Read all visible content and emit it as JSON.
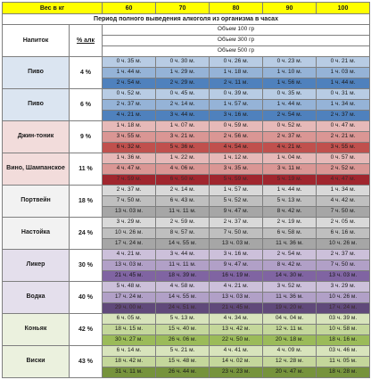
{
  "header": {
    "weight_label": "Вес в кг",
    "weights": [
      "60",
      "70",
      "80",
      "90",
      "100"
    ],
    "subtitle": "Период полного выведения алкоголя из организма в часах",
    "drink_label": "Напиток",
    "pct_label": "% алк",
    "volumes": [
      "Объем 100 гр",
      "Объем 300 гр",
      "Объем 500 гр"
    ]
  },
  "colors": {
    "weight_header": "#ffff00",
    "Пиво": [
      "#dbe5f1",
      "#b8cce4",
      "#95b3d7",
      "#4f81bd"
    ],
    "Джин-тоник": [
      "#f2dcdb",
      "#e6b9b8",
      "#da9694",
      "#c0504d"
    ],
    "Вино, Шампанское": [
      "#f2dcdb",
      "#e6b9b8",
      "#da9694",
      "#a0262e"
    ],
    "Портвейн": [
      "#f2f2f2",
      "#d9d9d9",
      "#bfbfbf",
      "#a6a6a6"
    ],
    "Настойка": [
      "#f2f2f2",
      "#d9d9d9",
      "#bfbfbf",
      "#a6a6a6"
    ],
    "Ликер": [
      "#e4dfec",
      "#ccc0da",
      "#b1a0c7",
      "#8064a2"
    ],
    "Водка": [
      "#e4dfec",
      "#ccc0da",
      "#b1a0c7",
      "#60497a"
    ],
    "Коньяк": [
      "#ebf1de",
      "#d8e4bc",
      "#c4d79b",
      "#9bbb59"
    ],
    "Виски": [
      "#ebf1de",
      "#d8e4bc",
      "#c4d79b",
      "#76933c"
    ]
  },
  "rows": [
    {
      "drink": "Пиво",
      "pct": "4 %",
      "values": [
        [
          "0 ч. 35 м.",
          "0 ч. 30 м.",
          "0 ч. 26 м.",
          "0 ч. 23 м.",
          "0 ч. 21 м."
        ],
        [
          "1 ч. 44 м.",
          "1 ч. 29 м.",
          "1 ч. 18 м.",
          "1 ч. 10 м.",
          "1 ч. 03 м."
        ],
        [
          "2 ч. 54 м.",
          "2 ч. 29 м.",
          "2 ч. 11 м.",
          "1 ч. 56 м.",
          "1 ч. 44 м."
        ]
      ]
    },
    {
      "drink": "Пиво",
      "pct": "6 %",
      "values": [
        [
          "0 ч. 52 м.",
          "0 ч. 45 м.",
          "0 ч. 39 м.",
          "0 ч. 35 м.",
          "0 ч. 31 м."
        ],
        [
          "2 ч. 37 м.",
          "2 ч. 14 м.",
          "1 ч. 57 м.",
          "1 ч. 44 м.",
          "1 ч. 34 м."
        ],
        [
          "4 ч. 21 м.",
          "3 ч. 44 м.",
          "3 ч. 16 м.",
          "2 ч. 54 м.",
          "2 ч. 37 м."
        ]
      ]
    },
    {
      "drink": "Джин-тоник",
      "pct": "9 %",
      "values": [
        [
          "1 ч. 18 м.",
          "1 ч. 07 м.",
          "0 ч. 59 м.",
          "0 ч. 52 м.",
          "0 ч. 47 м."
        ],
        [
          "3 ч. 55 м.",
          "3 ч. 21 м.",
          "2 ч. 56 м.",
          "2 ч. 37 м.",
          "2 ч. 21 м."
        ],
        [
          "6 ч. 32 м.",
          "5 ч. 36 м.",
          "4 ч. 54 м.",
          "4 ч. 21 м.",
          "3 ч. 55 м."
        ]
      ]
    },
    {
      "drink": "Вино, Шампанское",
      "pct": "11 %",
      "values": [
        [
          "1 ч. 36 м.",
          "1 ч. 22 м.",
          "1 ч. 12 м.",
          "1 ч. 04 м.",
          "0 ч. 57 м."
        ],
        [
          "4 ч. 47 м.",
          "4 ч. 06 м.",
          "3 ч. 35 м.",
          "3 ч. 11 м.",
          "2 ч. 52 м."
        ],
        [
          "7 ч. 59 м.",
          "6 ч. 50 м.",
          "5 ч. 59 м.",
          "5 ч. 19 м.",
          "4 ч. 47 м."
        ]
      ]
    },
    {
      "drink": "Портвейн",
      "pct": "18 %",
      "values": [
        [
          "2 ч. 37 м.",
          "2 ч. 14 м.",
          "1 ч. 57 м.",
          "1 ч. 44 м.",
          "1 ч. 34 м."
        ],
        [
          "7 ч. 50 м.",
          "6 ч. 43 м.",
          "5 ч. 52 м.",
          "5 ч. 13 м.",
          "4 ч. 42 м."
        ],
        [
          "13 ч. 03 м.",
          "11 ч. 11 м.",
          "9 ч. 47 м.",
          "8 ч. 42 м.",
          "7 ч. 50 м."
        ]
      ]
    },
    {
      "drink": "Настойка",
      "pct": "24 %",
      "values": [
        [
          "3 ч. 29 м.",
          "2 ч. 59 м.",
          "2 ч. 37 м.",
          "2 ч. 19 м.",
          "2 ч. 05 м."
        ],
        [
          "10 ч. 26 м.",
          "8 ч. 57 м.",
          "7 ч. 50 м.",
          "6 ч. 58 м.",
          "6 ч. 16 м."
        ],
        [
          "17 ч. 24 м.",
          "14 ч. 55 м.",
          "13 ч. 03 м.",
          "11 ч. 36 м.",
          "10 ч. 26 м."
        ]
      ]
    },
    {
      "drink": "Ликер",
      "pct": "30 %",
      "values": [
        [
          "4 ч. 21 м.",
          "3 ч. 44 м.",
          "3 ч. 16 м.",
          "2 ч. 54 м.",
          "2 ч. 37 м."
        ],
        [
          "13 ч. 03 м.",
          "11 ч. 11 м.",
          "9 ч. 47 м.",
          "8 ч. 42 м.",
          "7 ч. 50 м."
        ],
        [
          "21 ч. 45 м.",
          "18 ч. 39 м.",
          "16 ч. 19 м.",
          "14 ч. 30 м.",
          "13 ч. 03 м."
        ]
      ]
    },
    {
      "drink": "Водка",
      "pct": "40 %",
      "values": [
        [
          "5 ч. 48 м.",
          "4 ч. 58 м.",
          "4 ч. 21 м.",
          "3 ч. 52 м.",
          "3 ч. 29 м."
        ],
        [
          "17 ч. 24 м.",
          "14 ч. 55 м.",
          "13 ч. 03 м.",
          "11 ч. 36 м.",
          "10 ч. 26 м."
        ],
        [
          "29 ч. 00 м.",
          "24 ч. 51 м.",
          "21 ч. 45 м.",
          "19 ч. 20 м.",
          "17 ч. 24 м."
        ]
      ]
    },
    {
      "drink": "Коньяк",
      "pct": "42 %",
      "values": [
        [
          "6 ч. 05 м.",
          "5 ч. 13 м.",
          "4 ч. 34 м.",
          "04 ч. 04 м.",
          "03 ч. 39 м."
        ],
        [
          "18 ч. 15 м.",
          "15 ч. 40 м.",
          "13 ч. 42 м.",
          "12 ч. 11 м.",
          "10 ч. 58 м."
        ],
        [
          "30 ч. 27 м.",
          "26 ч. 06 м.",
          "22 ч. 50 м.",
          "20 ч. 18 м.",
          "18 ч. 16 м."
        ]
      ]
    },
    {
      "drink": "Виски",
      "pct": "43 %",
      "values": [
        [
          "6 ч. 14 м.",
          "5 ч. 21 м.",
          "4 ч. 41 м.",
          "4 ч. 09 м.",
          "03 ч. 46 м."
        ],
        [
          "18 ч. 42 м.",
          "15 ч. 48 м.",
          "14 ч. 02 м.",
          "12 ч. 28 м.",
          "11 ч. 05 м."
        ],
        [
          "31 ч. 11 м.",
          "26 ч. 44 м.",
          "23 ч. 23 м.",
          "20 ч. 47 м.",
          "18 ч. 28 м."
        ]
      ]
    }
  ]
}
